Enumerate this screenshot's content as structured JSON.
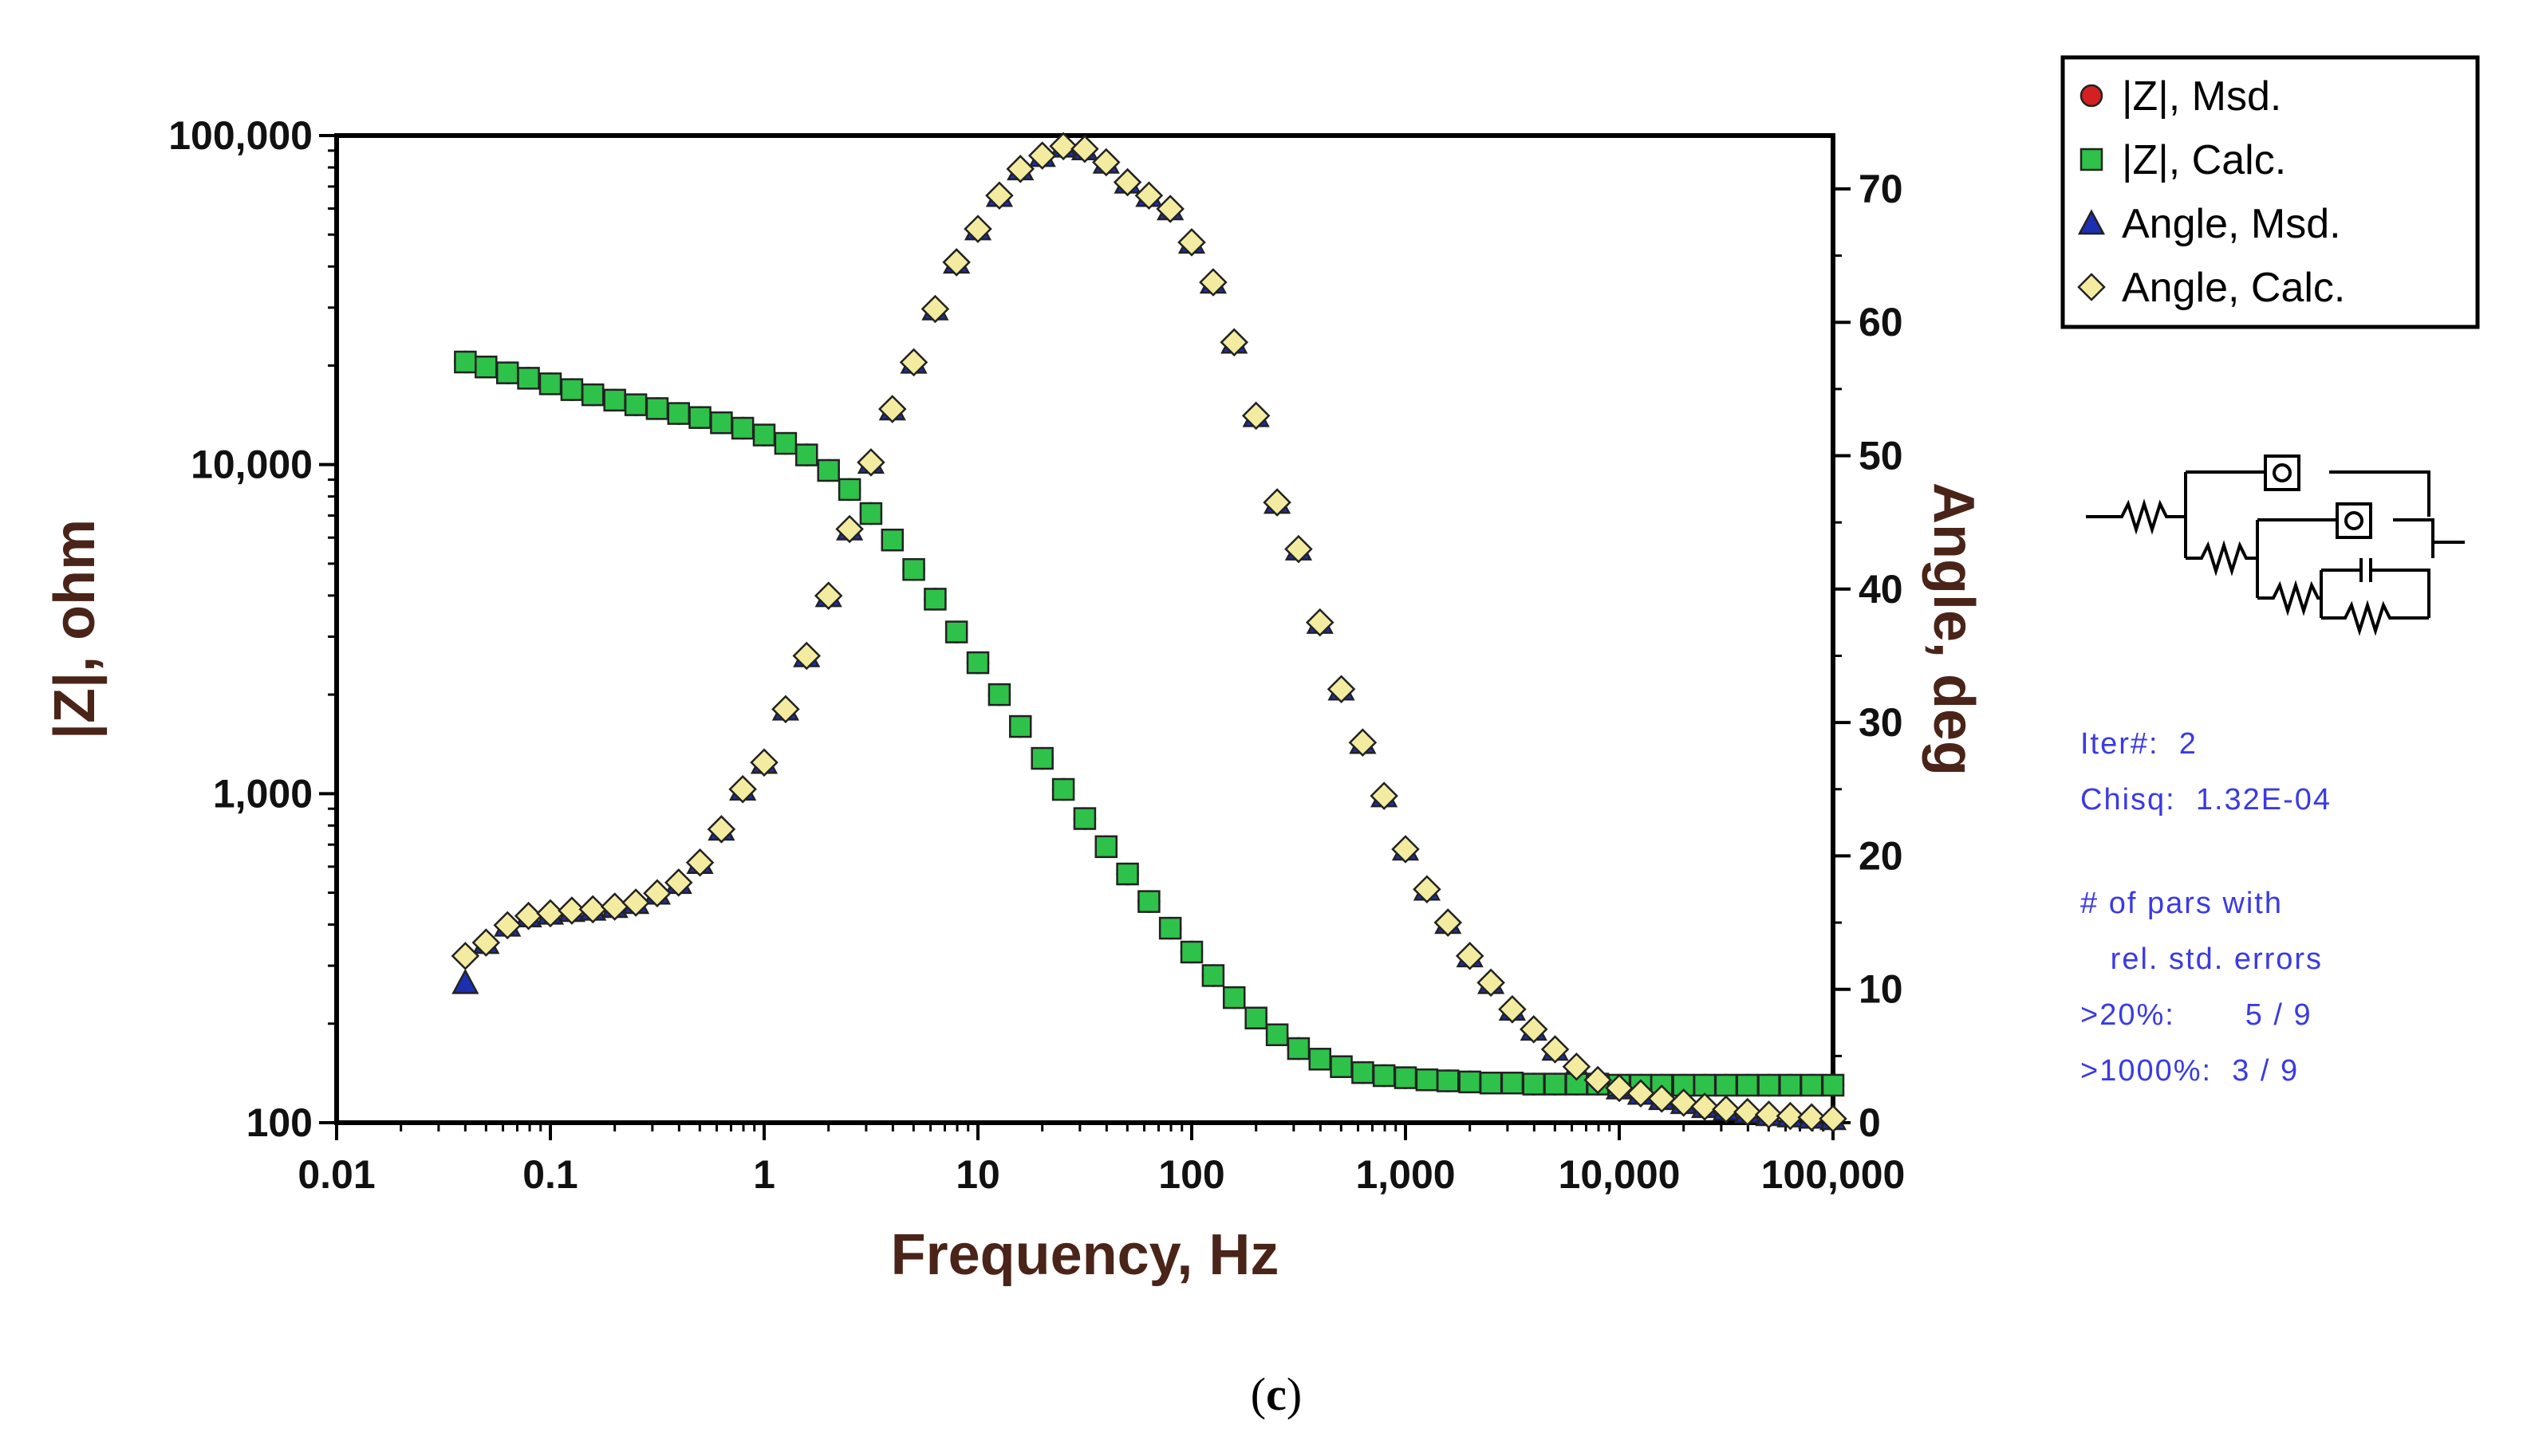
{
  "chart_data": {
    "type": "scatter",
    "xscale": "log",
    "xlim": [
      0.01,
      100000
    ],
    "ylim_left": [
      100,
      100000
    ],
    "yscale_left": "log",
    "ylim_right": [
      0,
      74
    ],
    "xlabel": "Frequency,  Hz",
    "ylabel_left": "|Z|, ohm",
    "ylabel_right": "Angle, deg",
    "x_ticks": [
      "0.01",
      "0.1",
      "1",
      "10",
      "100",
      "1,000",
      "10,000",
      "100,000"
    ],
    "y_left_ticks": [
      "100",
      "1,000",
      "10,000",
      "100,000"
    ],
    "y_right_ticks": [
      "0",
      "10",
      "20",
      "30",
      "40",
      "50",
      "60",
      "70"
    ],
    "legend": [
      {
        "label": "|Z|,  Msd.",
        "marker": "circle",
        "color": "#d42020"
      },
      {
        "label": "|Z|,  Calc.",
        "marker": "square",
        "color": "#2ec24a"
      },
      {
        "label": "Angle,  Msd.",
        "marker": "triangle",
        "color": "#1c2fb0"
      },
      {
        "label": "Angle,  Calc.",
        "marker": "diamond",
        "color": "#f3eca0"
      }
    ],
    "legend_position": "top-right outside",
    "frequency_hz": [
      0.04,
      0.05,
      0.063,
      0.079,
      0.1,
      0.126,
      0.158,
      0.2,
      0.251,
      0.316,
      0.398,
      0.501,
      0.631,
      0.794,
      1.0,
      1.26,
      1.58,
      2.0,
      2.51,
      3.16,
      3.98,
      5.01,
      6.31,
      7.94,
      10.0,
      12.6,
      15.8,
      20.0,
      25.1,
      31.6,
      39.8,
      50.1,
      63.1,
      79.4,
      100,
      126,
      158,
      200,
      251,
      316,
      398,
      501,
      631,
      794,
      1000,
      1260,
      1580,
      2000,
      2510,
      3160,
      3980,
      5010,
      6310,
      7940,
      10000,
      12600,
      15800,
      20000,
      25100,
      31600,
      39800,
      50100,
      63100,
      79400,
      100000
    ],
    "series": [
      {
        "name": "|Z|,  Msd.",
        "axis": "left",
        "values": [
          20500,
          19800,
          19000,
          18300,
          17600,
          16900,
          16300,
          15700,
          15200,
          14800,
          14300,
          13900,
          13400,
          12900,
          12300,
          11600,
          10700,
          9600,
          8400,
          7100,
          5900,
          4800,
          3900,
          3100,
          2500,
          2000,
          1600,
          1280,
          1030,
          840,
          690,
          570,
          470,
          390,
          330,
          280,
          240,
          208,
          185,
          168,
          156,
          148,
          142,
          139,
          137,
          135,
          134,
          133,
          132,
          132,
          131,
          131,
          131,
          131,
          130,
          130,
          130,
          130,
          130,
          130,
          130,
          130,
          130,
          130,
          130
        ]
      },
      {
        "name": "|Z|,  Calc.",
        "axis": "left",
        "values": [
          20500,
          19800,
          19000,
          18300,
          17600,
          16900,
          16300,
          15700,
          15200,
          14800,
          14300,
          13900,
          13400,
          12900,
          12300,
          11600,
          10700,
          9600,
          8400,
          7100,
          5900,
          4800,
          3900,
          3100,
          2500,
          2000,
          1600,
          1280,
          1030,
          840,
          690,
          570,
          470,
          390,
          330,
          280,
          240,
          208,
          185,
          168,
          156,
          148,
          142,
          139,
          137,
          135,
          134,
          133,
          132,
          132,
          131,
          131,
          131,
          131,
          130,
          130,
          130,
          130,
          130,
          130,
          130,
          130,
          130,
          130,
          130
        ]
      },
      {
        "name": "Angle,  Msd.",
        "axis": "right",
        "values": [
          10.5,
          13.5,
          14.8,
          15.5,
          15.7,
          15.9,
          16.0,
          16.2,
          16.5,
          17.2,
          18.0,
          19.5,
          22.0,
          25.0,
          27.0,
          31.0,
          35.0,
          39.5,
          44.5,
          49.5,
          53.5,
          57.0,
          61.0,
          64.5,
          67.0,
          69.5,
          71.5,
          72.5,
          73.2,
          73.0,
          72.0,
          70.5,
          69.5,
          68.5,
          66.0,
          63.0,
          58.5,
          53.0,
          46.5,
          43.0,
          37.5,
          32.5,
          28.5,
          24.5,
          20.5,
          17.5,
          15.0,
          12.5,
          10.5,
          8.5,
          7.0,
          5.5,
          4.2,
          3.2,
          2.6,
          2.2,
          1.8,
          1.5,
          1.2,
          1.0,
          0.8,
          0.6,
          0.5,
          0.4,
          0.3
        ]
      },
      {
        "name": "Angle,  Calc.",
        "axis": "right",
        "values": [
          12.5,
          13.5,
          14.8,
          15.5,
          15.7,
          15.9,
          16.0,
          16.2,
          16.5,
          17.2,
          18.0,
          19.5,
          22.0,
          25.0,
          27.0,
          31.0,
          35.0,
          39.5,
          44.5,
          49.5,
          53.5,
          57.0,
          61.0,
          64.5,
          67.0,
          69.5,
          71.5,
          72.5,
          73.2,
          73.0,
          72.0,
          70.5,
          69.5,
          68.5,
          66.0,
          63.0,
          58.5,
          53.0,
          46.5,
          43.0,
          37.5,
          32.5,
          28.5,
          24.5,
          20.5,
          17.5,
          15.0,
          12.5,
          10.5,
          8.5,
          7.0,
          5.5,
          4.2,
          3.2,
          2.6,
          2.2,
          1.8,
          1.5,
          1.2,
          1.0,
          0.8,
          0.6,
          0.5,
          0.4,
          0.3
        ]
      }
    ]
  },
  "fit_info": {
    "iter_line": "Iter#:  2",
    "chisq_line": "Chisq:  1.32E-04",
    "pars_line1": "# of pars with",
    "pars_line2": "   rel. std. errors",
    "pct20_line": ">20%:       5 / 9",
    "pct1000_line": ">1000%:  3 / 9"
  },
  "caption": {
    "open": "(",
    "letter": "c",
    "close": ")"
  }
}
